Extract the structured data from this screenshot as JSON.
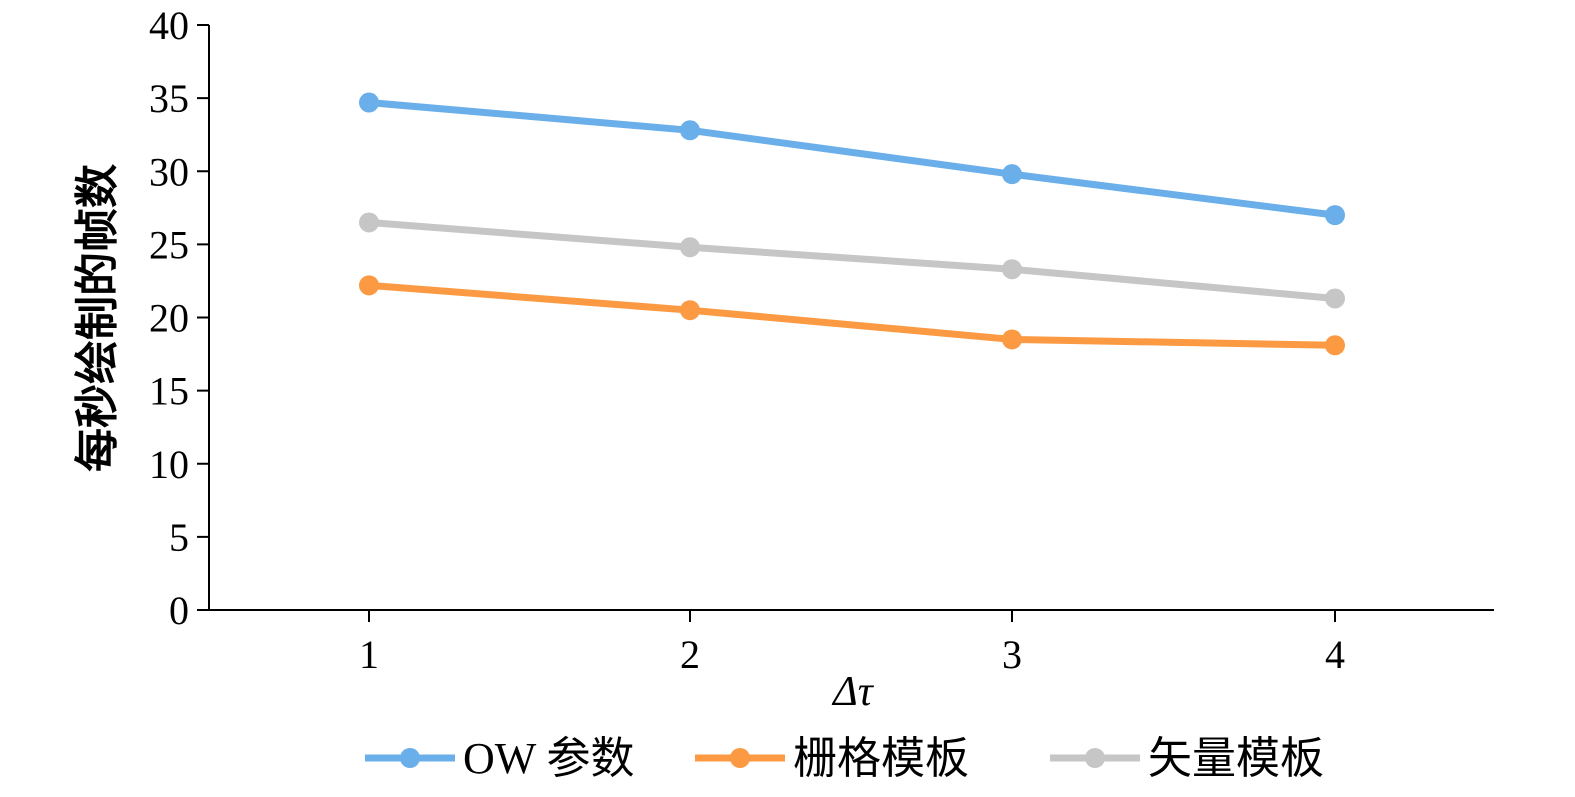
{
  "chart_data": {
    "type": "line",
    "title": "",
    "xlabel": "Δτ",
    "ylabel": "每秒绘制的帧数",
    "categories": [
      "1",
      "2",
      "3",
      "4"
    ],
    "ylim": [
      0,
      40
    ],
    "yticks": [
      0,
      5,
      10,
      15,
      20,
      25,
      30,
      35,
      40
    ],
    "grid": false,
    "legend_position": "bottom",
    "series": [
      {
        "name": "OW 参数",
        "color": "#6aaeea",
        "values": [
          34.7,
          32.8,
          29.8,
          27.0
        ]
      },
      {
        "name": "栅格模板",
        "color": "#fb9a43",
        "values": [
          22.2,
          20.5,
          18.5,
          18.1
        ]
      },
      {
        "name": "矢量模板",
        "color": "#c6c6c6",
        "values": [
          26.5,
          24.8,
          23.3,
          21.3
        ]
      }
    ]
  }
}
